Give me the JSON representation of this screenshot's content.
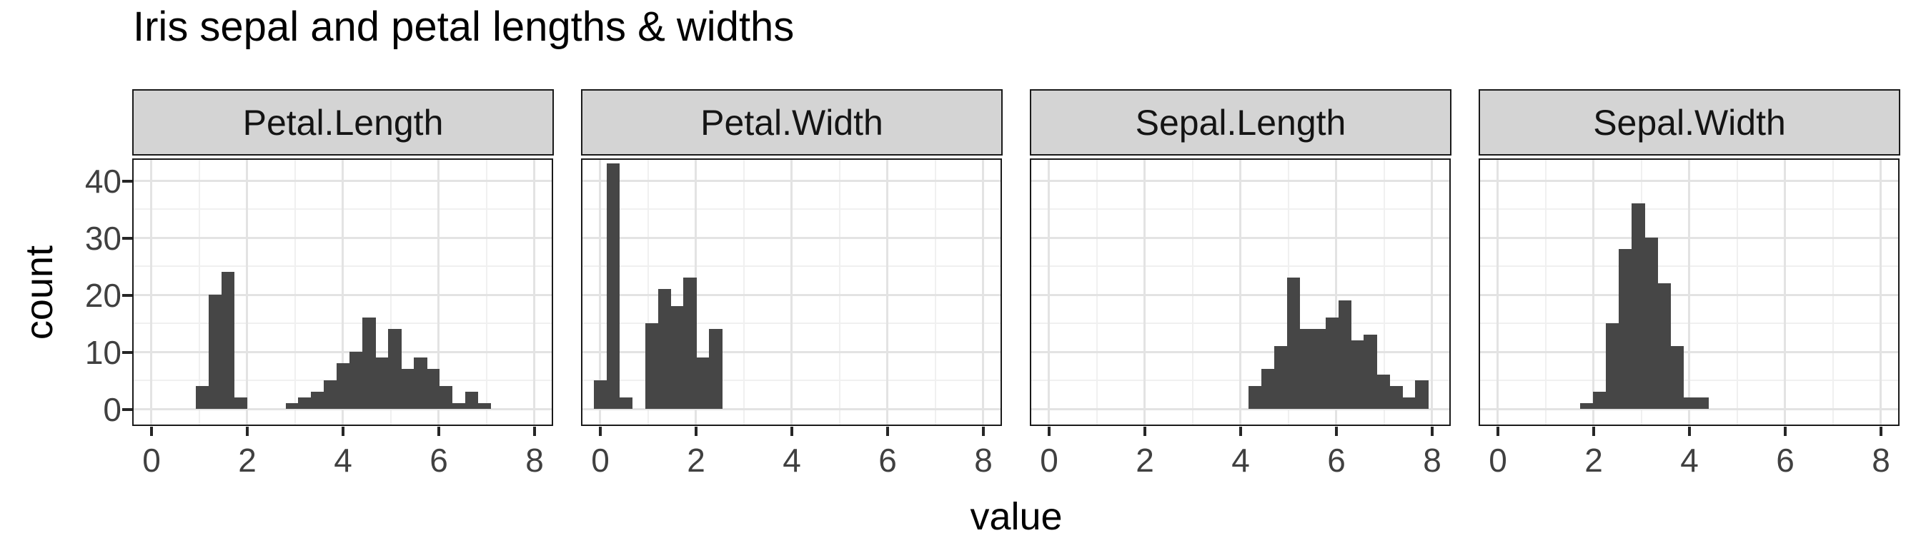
{
  "title": "Iris sepal and petal lengths & widths",
  "y_axis": {
    "label": "count",
    "ticks": [
      0,
      10,
      20,
      30,
      40
    ],
    "minor_ticks": [
      5,
      15,
      25,
      35
    ]
  },
  "x_axis": {
    "label": "value",
    "ticks": [
      0,
      2,
      4,
      6,
      8
    ],
    "minor_ticks": [
      1,
      3,
      5,
      7
    ]
  },
  "chart_data": {
    "type": "bar",
    "subtype": "faceted-histogram",
    "title": "Iris sepal and petal lengths & widths",
    "xlabel": "value",
    "ylabel": "count",
    "xlim": [
      -0.4,
      8.4
    ],
    "ylim": [
      0,
      43.6
    ],
    "grid": "on",
    "legend": "none",
    "facets": [
      {
        "label": "Petal.Length",
        "bin_start": 0.93,
        "bin_width": 0.268,
        "counts": [
          4,
          20,
          24,
          2,
          0,
          0,
          0,
          1,
          2,
          3,
          5,
          8,
          10,
          16,
          9,
          14,
          7,
          9,
          7,
          4,
          1,
          3,
          1
        ]
      },
      {
        "label": "Petal.Width",
        "bin_start": -0.13,
        "bin_width": 0.268,
        "counts": [
          5,
          43,
          2,
          0,
          15,
          21,
          18,
          23,
          9,
          14
        ]
      },
      {
        "label": "Sepal.Length",
        "bin_start": 4.17,
        "bin_width": 0.268,
        "counts": [
          4,
          7,
          11,
          23,
          14,
          14,
          16,
          19,
          12,
          13,
          6,
          4,
          2,
          5
        ]
      },
      {
        "label": "Sepal.Width",
        "bin_start": 1.73,
        "bin_width": 0.268,
        "counts": [
          1,
          3,
          15,
          28,
          36,
          30,
          22,
          11,
          2,
          2
        ]
      }
    ]
  },
  "colors": {
    "bar_fill": "#464646",
    "strip_fill": "#d4d4d4",
    "strip_border": "#1a1a1a",
    "panel_border": "#1a1a1a",
    "grid_major": "#e3e3e3",
    "grid_minor": "#f0f0f0",
    "tick_mark": "#262626",
    "tick_label": "#404040",
    "text": "#000000",
    "background": "#ffffff"
  }
}
